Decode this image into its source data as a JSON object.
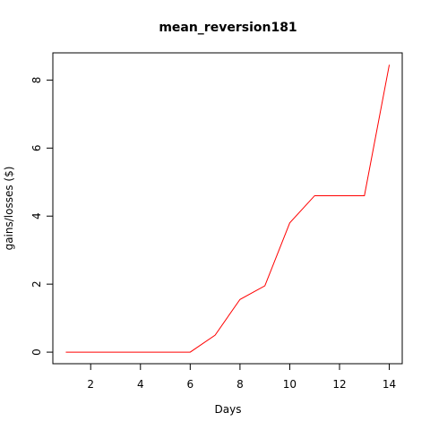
{
  "chart_data": {
    "type": "line",
    "title": "mean_reversion181",
    "xlabel": "Days",
    "ylabel": "gains/losses ($)",
    "xlim": [
      0.48,
      14.52
    ],
    "ylim": [
      -0.34,
      8.8
    ],
    "xticks": [
      2,
      4,
      6,
      8,
      10,
      12,
      14
    ],
    "yticks": [
      0,
      2,
      4,
      6,
      8
    ],
    "grid": false,
    "legend": "none",
    "series": [
      {
        "color": "#ff0000",
        "x": [
          1,
          2,
          3,
          4,
          5,
          6,
          7,
          8,
          9,
          10,
          11,
          12,
          13,
          14
        ],
        "y": [
          0,
          0,
          0,
          0,
          0,
          0,
          0.5,
          1.55,
          1.95,
          3.8,
          4.6,
          4.6,
          4.6,
          8.45
        ]
      }
    ]
  }
}
